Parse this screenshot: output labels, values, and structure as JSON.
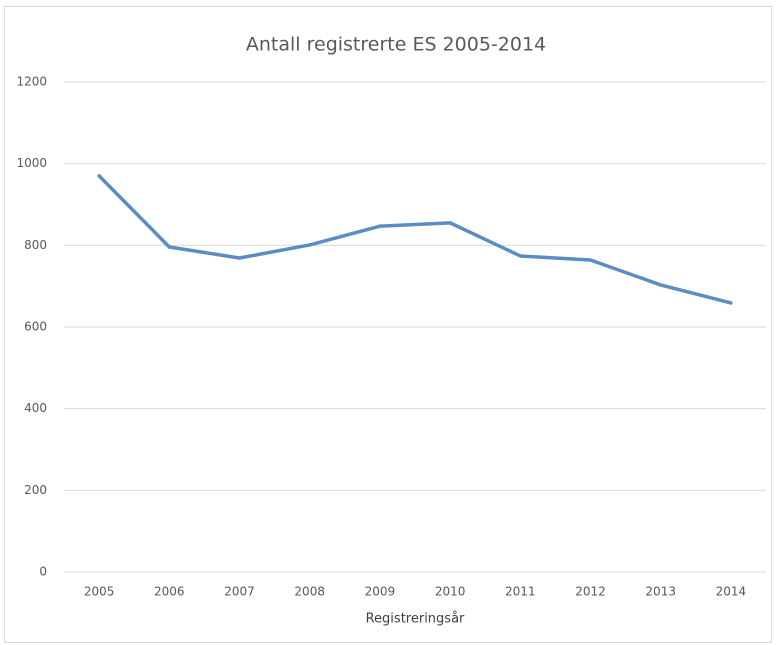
{
  "chart_data": {
    "type": "line",
    "title": "Antall registrerte ES 2005-2014",
    "x_label": "Registreringsår",
    "categories": [
      "2005",
      "2006",
      "2007",
      "2008",
      "2009",
      "2010",
      "2011",
      "2012",
      "2013",
      "2014"
    ],
    "values": [
      970,
      796,
      769,
      801,
      847,
      855,
      774,
      764,
      703,
      659
    ],
    "color": "#5b8cc4",
    "ylim": [
      0,
      1200
    ],
    "yticks": [
      0,
      200,
      400,
      600,
      800,
      1000,
      1200
    ],
    "grid": true
  }
}
